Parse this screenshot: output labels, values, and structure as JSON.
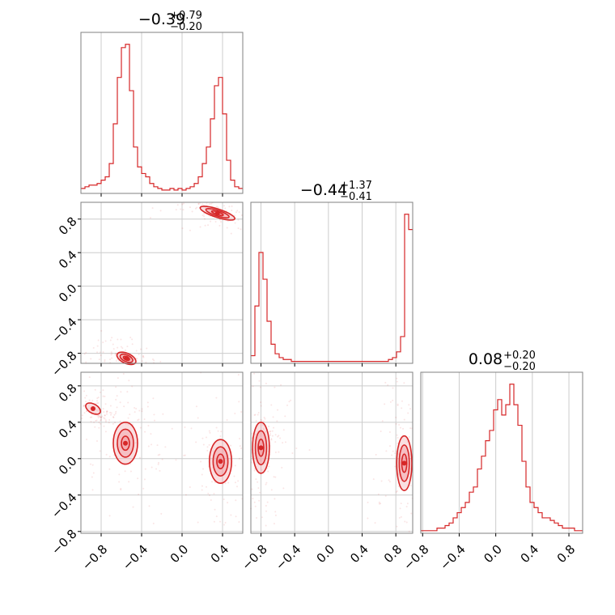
{
  "style": {
    "color": "#d62728",
    "fill": "#f2a0a6",
    "grid": "#cccccc",
    "frame": "#808080"
  },
  "chart_data": {
    "type": "corner",
    "grid": true,
    "xlim": [
      -1.0,
      0.6
    ],
    "ylim": [
      -0.92,
      1.0
    ],
    "zlim": [
      -0.82,
      0.95
    ],
    "x_ticks": [
      "−0.8",
      "−0.4",
      "0.0",
      "0.4"
    ],
    "x_tick_values": [
      -0.8,
      -0.4,
      0.0,
      0.4
    ],
    "y_ticks": [
      "0.8",
      "0.4",
      "0.0",
      "−0.4",
      "−0.8"
    ],
    "y_tick_values": [
      0.8,
      0.4,
      0.0,
      -0.4,
      -0.8
    ],
    "z_ticks": [
      "0.8",
      "0.4",
      "0.0",
      "−0.4",
      "−0.8"
    ],
    "z_tick_values": [
      0.8,
      0.4,
      0.0,
      -0.4,
      -0.8
    ],
    "y_xticks": [
      "−0.8",
      "−0.4",
      "0.0",
      "0.4",
      "0.8"
    ],
    "z_xticks": [
      "−0.8",
      "−0.4",
      "0.0",
      "0.4",
      "0.8"
    ],
    "titles": [
      {
        "main": "−0.39",
        "plus": "+0.79",
        "minus": "−0.20"
      },
      {
        "main": "−0.44",
        "plus": "+1.37",
        "minus": "−0.41"
      },
      {
        "main": "0.08",
        "plus": "+0.20",
        "minus": "−0.20"
      }
    ],
    "marginal_x": {
      "edges": [
        -1.0,
        0.6
      ],
      "bins": 40,
      "counts": [
        3,
        4,
        5,
        5,
        6,
        8,
        10,
        18,
        42,
        70,
        88,
        90,
        62,
        28,
        16,
        12,
        10,
        6,
        4,
        3,
        2,
        2,
        3,
        2,
        3,
        2,
        3,
        4,
        6,
        10,
        18,
        28,
        45,
        65,
        70,
        48,
        20,
        8,
        4,
        3
      ]
    },
    "marginal_y": {
      "edges": [
        -0.92,
        1.0
      ],
      "bins": 40,
      "counts": [
        4,
        30,
        58,
        44,
        22,
        10,
        5,
        3,
        2,
        2,
        1,
        1,
        1,
        1,
        1,
        1,
        1,
        1,
        1,
        1,
        1,
        1,
        1,
        1,
        1,
        1,
        1,
        1,
        1,
        1,
        1,
        1,
        1,
        1,
        2,
        3,
        6,
        14,
        78,
        70
      ]
    },
    "marginal_z": {
      "edges": [
        -0.82,
        0.95
      ],
      "bins": 40,
      "counts": [
        1,
        1,
        1,
        1,
        2,
        2,
        3,
        4,
        6,
        8,
        10,
        12,
        16,
        18,
        25,
        30,
        36,
        40,
        48,
        52,
        46,
        50,
        58,
        50,
        42,
        28,
        18,
        12,
        10,
        8,
        6,
        6,
        5,
        4,
        3,
        2,
        2,
        2,
        1,
        1
      ]
    },
    "clusters_xy": [
      {
        "cx": -0.55,
        "cy": -0.86,
        "rx": 0.1,
        "ry": 0.06,
        "angle": -24,
        "levels": 3
      },
      {
        "cx": 0.35,
        "cy": 0.87,
        "rx": 0.18,
        "ry": 0.05,
        "angle": -18,
        "levels": 3
      }
    ],
    "clusters_xz": [
      {
        "cx": -0.56,
        "cy": 0.17,
        "rx": 0.12,
        "ry": 0.23,
        "angle": 0,
        "levels": 3
      },
      {
        "cx": 0.38,
        "cy": -0.03,
        "rx": 0.11,
        "ry": 0.24,
        "angle": 0,
        "levels": 3
      },
      {
        "cx": -0.88,
        "cy": 0.55,
        "rx": 0.08,
        "ry": 0.05,
        "angle": -30,
        "levels": 1
      }
    ],
    "clusters_yz": [
      {
        "cx": -0.8,
        "cy": 0.12,
        "rx": 0.1,
        "ry": 0.28,
        "angle": 0,
        "levels": 3
      },
      {
        "cx": 0.9,
        "cy": -0.05,
        "rx": 0.09,
        "ry": 0.3,
        "angle": 0,
        "levels": 3
      }
    ]
  }
}
